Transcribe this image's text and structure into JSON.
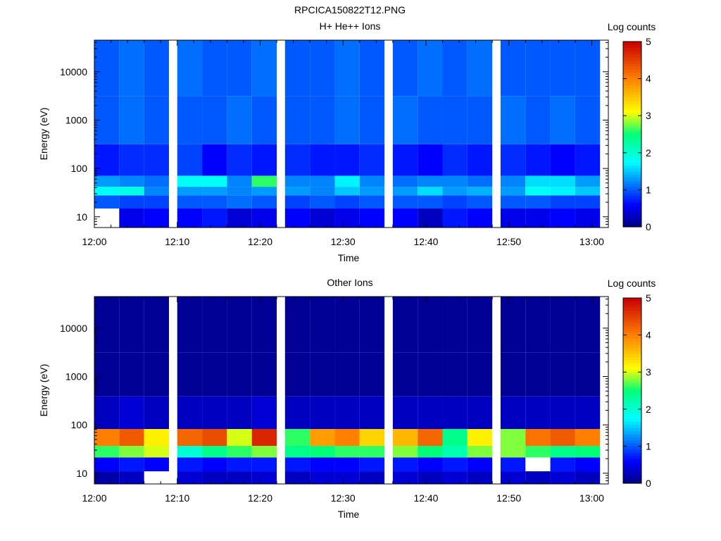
{
  "figure": {
    "title": "RPCICA150822T12.PNG"
  },
  "chart_data": [
    {
      "type": "heatmap",
      "title": "H+ He++ Ions",
      "xlabel": "Time",
      "ylabel": "Energy (eV)",
      "colorbar_label": "Log counts",
      "colorbar_ticks": [
        "0",
        "1",
        "2",
        "3",
        "4",
        "5"
      ],
      "colorbar_range": [
        0,
        5
      ],
      "colormap": "rainbow (dark blue → blue → cyan → green → yellow → orange → red)",
      "x_ticks": [
        "12:00",
        "12:10",
        "12:20",
        "12:30",
        "12:40",
        "12:50",
        "13:00"
      ],
      "x_range": [
        "12:00",
        "13:02"
      ],
      "y_scale": "log",
      "y_ticks": [
        "10",
        "100",
        "1000",
        "10000"
      ],
      "y_range": [
        6,
        45000
      ],
      "time_bins": [
        "12:00",
        "12:03",
        "12:06",
        "12:10",
        "12:13",
        "12:16",
        "12:19",
        "12:23",
        "12:26",
        "12:29",
        "12:32",
        "12:36",
        "12:39",
        "12:42",
        "12:45",
        "12:49",
        "12:52",
        "12:55",
        "12:58"
      ],
      "energy_bands": [
        {
          "energy_eV": 10,
          "values": [
            null,
            0.5,
            0.6,
            0.6,
            0.7,
            0.4,
            0.5,
            0.6,
            0.4,
            0.5,
            0.6,
            0.6,
            0.3,
            0.7,
            0.6,
            0.5,
            0.5,
            0.6,
            0.5
          ]
        },
        {
          "energy_eV": 22,
          "values": [
            1.0,
            0.9,
            0.9,
            1.0,
            1.0,
            1.1,
            1.0,
            0.9,
            1.0,
            0.9,
            1.0,
            1.0,
            1.0,
            0.9,
            1.0,
            1.0,
            1.0,
            0.9,
            0.9
          ]
        },
        {
          "energy_eV": 35,
          "values": [
            1.8,
            1.9,
            1.2,
            1.3,
            1.3,
            1.2,
            1.3,
            1.3,
            1.2,
            1.5,
            1.3,
            1.3,
            1.6,
            1.3,
            1.4,
            1.3,
            1.8,
            1.7,
            1.5
          ]
        },
        {
          "energy_eV": 50,
          "values": [
            1.3,
            1.2,
            1.1,
            1.8,
            1.8,
            1.2,
            2.6,
            1.2,
            1.2,
            1.7,
            1.2,
            1.1,
            1.2,
            1.2,
            1.1,
            1.2,
            1.6,
            1.6,
            1.3
          ]
        },
        {
          "energy_eV": 100,
          "values": [
            0.7,
            0.8,
            0.8,
            0.9,
            0.6,
            0.8,
            0.7,
            0.8,
            0.7,
            0.7,
            0.8,
            0.7,
            0.6,
            0.8,
            0.7,
            0.8,
            0.7,
            0.6,
            0.7
          ]
        },
        {
          "energy_eV": 1000,
          "values": [
            1.0,
            1.1,
            1.0,
            1.0,
            1.0,
            1.1,
            1.0,
            1.0,
            1.0,
            1.1,
            1.0,
            1.1,
            1.0,
            1.0,
            1.0,
            1.1,
            1.0,
            1.1,
            1.0
          ]
        },
        {
          "energy_eV": 10000,
          "values": [
            1.0,
            1.1,
            1.0,
            1.1,
            1.0,
            1.0,
            1.1,
            1.0,
            1.0,
            1.1,
            1.0,
            1.0,
            1.1,
            1.0,
            1.1,
            1.0,
            1.0,
            1.0,
            1.0
          ]
        }
      ]
    },
    {
      "type": "heatmap",
      "title": "Other Ions",
      "xlabel": "Time",
      "ylabel": "Energy (eV)",
      "colorbar_label": "Log counts",
      "colorbar_ticks": [
        "0",
        "1",
        "2",
        "3",
        "4",
        "5"
      ],
      "colorbar_range": [
        0,
        5
      ],
      "colormap": "rainbow (dark blue → blue → cyan → green → yellow → orange → red)",
      "x_ticks": [
        "12:00",
        "12:10",
        "12:20",
        "12:30",
        "12:40",
        "12:50",
        "13:00"
      ],
      "x_range": [
        "12:00",
        "13:02"
      ],
      "y_scale": "log",
      "y_ticks": [
        "10",
        "100",
        "1000",
        "10000"
      ],
      "y_range": [
        6,
        45000
      ],
      "time_bins": [
        "12:00",
        "12:03",
        "12:06",
        "12:10",
        "12:13",
        "12:16",
        "12:19",
        "12:23",
        "12:26",
        "12:29",
        "12:32",
        "12:36",
        "12:39",
        "12:42",
        "12:45",
        "12:49",
        "12:52",
        "12:55",
        "12:58"
      ],
      "energy_bands": [
        {
          "energy_eV": 8,
          "values": [
            0.2,
            0.3,
            null,
            0.4,
            0.3,
            0.3,
            0.4,
            0.3,
            0.4,
            0.4,
            0.3,
            0.4,
            0.3,
            0.4,
            0.3,
            0.4,
            0.3,
            0.4,
            0.3
          ]
        },
        {
          "energy_eV": 15,
          "values": [
            0.6,
            0.7,
            0.6,
            0.7,
            0.6,
            0.7,
            0.7,
            0.7,
            0.6,
            0.6,
            0.7,
            0.7,
            0.6,
            0.7,
            0.6,
            0.7,
            null,
            0.7,
            0.6
          ]
        },
        {
          "energy_eV": 30,
          "values": [
            2.6,
            2.8,
            3.0,
            2.0,
            2.4,
            2.6,
            2.8,
            2.4,
            2.5,
            2.6,
            2.6,
            2.8,
            2.5,
            2.2,
            2.8,
            2.8,
            2.6,
            2.4,
            2.5
          ]
        },
        {
          "energy_eV": 45,
          "values": [
            4.0,
            4.3,
            3.2,
            4.2,
            4.4,
            3.0,
            4.7,
            2.6,
            3.8,
            4.0,
            3.4,
            3.6,
            4.2,
            2.4,
            3.2,
            2.8,
            4.1,
            4.3,
            4.0
          ]
        },
        {
          "energy_eV": 150,
          "values": [
            0.3,
            0.4,
            0.3,
            0.3,
            0.3,
            0.3,
            0.4,
            0.3,
            0.3,
            0.3,
            0.3,
            0.3,
            0.3,
            0.3,
            0.3,
            0.3,
            0.3,
            0.3,
            0.3
          ]
        },
        {
          "energy_eV": 1000,
          "values": [
            0.1,
            0.1,
            0.1,
            0.1,
            0.1,
            0.1,
            0.1,
            0.1,
            0.1,
            0.1,
            0.1,
            0.1,
            0.1,
            0.1,
            0.1,
            0.1,
            0.1,
            0.1,
            0.1
          ]
        },
        {
          "energy_eV": 10000,
          "values": [
            0.1,
            0.1,
            0.1,
            0.1,
            0.1,
            0.1,
            0.1,
            0.1,
            0.1,
            0.1,
            0.1,
            0.1,
            0.1,
            0.1,
            0.1,
            0.1,
            0.1,
            0.1,
            0.1
          ]
        }
      ]
    }
  ]
}
